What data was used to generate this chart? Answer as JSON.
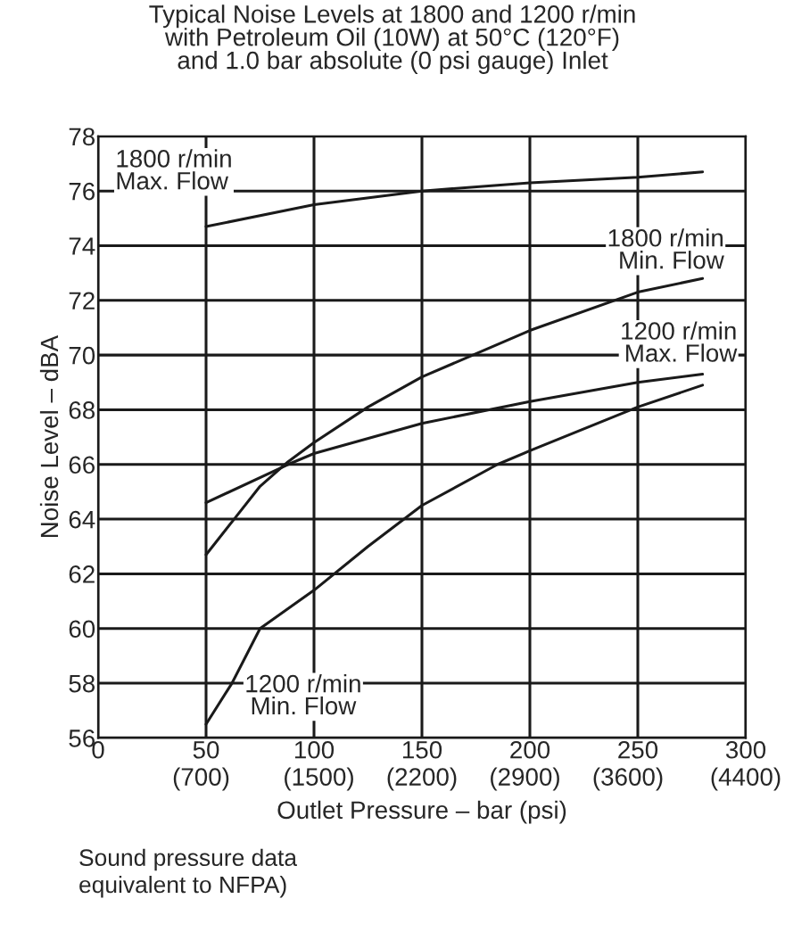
{
  "chart_data": {
    "type": "line",
    "title": "Typical Noise Levels at 1800 and 1200 r/min\nwith Petroleum Oil (10W) at 50°C (120°F)\nand 1.0 bar absolute (0 psi gauge) Inlet",
    "xlabel": "Outlet Pressure – bar (psi)",
    "ylabel": "Noise Level – dBA",
    "xlim": [
      0,
      300
    ],
    "ylim": [
      56,
      78
    ],
    "xticks": [
      0,
      50,
      100,
      150,
      200,
      250,
      300
    ],
    "x2lim": [
      0,
      4400
    ],
    "x2ticks": [
      {
        "value": 700,
        "label": "(700)"
      },
      {
        "value": 1500,
        "label": "(1500)"
      },
      {
        "value": 2200,
        "label": "(2200)"
      },
      {
        "value": 2900,
        "label": "(2900)"
      },
      {
        "value": 3600,
        "label": "(3600)"
      },
      {
        "value": 4400,
        "label": "(4400)"
      }
    ],
    "yticks": [
      56,
      58,
      60,
      62,
      64,
      66,
      68,
      70,
      72,
      74,
      76,
      78
    ],
    "grid": true,
    "legend": false,
    "marker": "none",
    "line_style": "solid",
    "series": [
      {
        "name": "1800 r/min\nMax. Flow",
        "color": "#1a1a1a",
        "x": [
          50,
          100,
          150,
          200,
          250,
          280
        ],
        "values": [
          74.7,
          75.5,
          76.0,
          76.3,
          76.5,
          76.7
        ]
      },
      {
        "name": "1800 r/min\nMin. Flow",
        "color": "#1a1a1a",
        "x": [
          50,
          63,
          75,
          88,
          100,
          125,
          150,
          200,
          250,
          280
        ],
        "values": [
          62.7,
          64.0,
          65.2,
          66.1,
          66.8,
          68.1,
          69.2,
          70.9,
          72.3,
          72.8
        ]
      },
      {
        "name": "1200 r/min\nMax. Flow",
        "color": "#1a1a1a",
        "x": [
          50,
          88,
          100,
          150,
          200,
          250,
          280
        ],
        "values": [
          64.6,
          66.0,
          66.4,
          67.5,
          68.3,
          69.0,
          69.3
        ]
      },
      {
        "name": "1200 r/min\nMin. Flow",
        "color": "#1a1a1a",
        "x": [
          50,
          62,
          75,
          100,
          125,
          150,
          185,
          200,
          250,
          280
        ],
        "values": [
          56.5,
          58.0,
          60.0,
          61.4,
          63.0,
          64.5,
          66.0,
          66.5,
          68.1,
          68.9
        ]
      }
    ],
    "annotations": [
      "Sound pressure data\nequivalent to NFPA)"
    ]
  }
}
